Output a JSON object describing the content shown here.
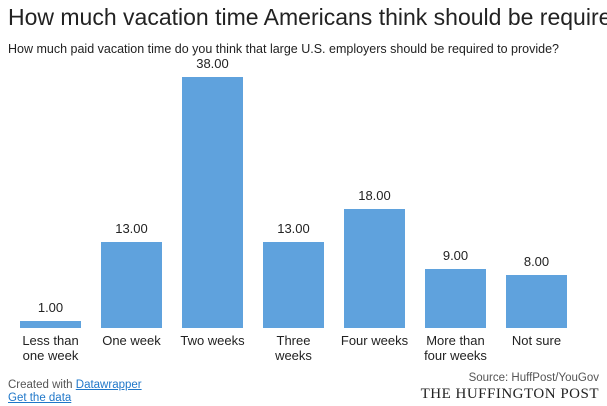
{
  "chart_data": {
    "type": "bar",
    "title": "How much vacation time Americans think should be required",
    "subtitle": "How much paid vacation time do you think that large U.S. employers should be required to provide?",
    "categories": [
      "Less than one week",
      "One week",
      "Two weeks",
      "Three weeks",
      "Four weeks",
      "More than four weeks",
      "Not sure"
    ],
    "values": [
      1,
      13,
      38,
      13,
      18,
      9,
      8
    ],
    "value_labels": [
      "1.00",
      "13.00",
      "38.00",
      "13.00",
      "18.00",
      "9.00",
      "8.00"
    ],
    "color": "#5fa2dd"
  },
  "footer": {
    "created_with": "Created with",
    "tool": "Datawrapper",
    "get_data": "Get the data",
    "source": "Source: HuffPost/YouGov",
    "brand": "THE HUFFINGTON POST"
  }
}
